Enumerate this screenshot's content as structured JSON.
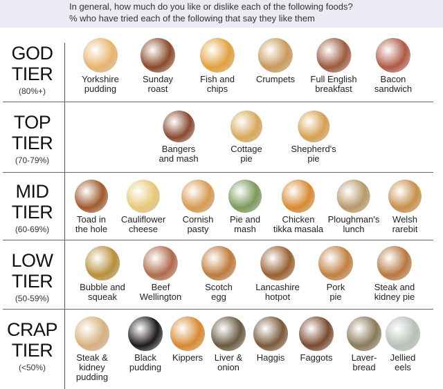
{
  "header": {
    "question": "In general, how much do you like or dislike each of the following foods?",
    "subtitle": "% who have tried each of the following that say they like them",
    "background": "#ecebf3"
  },
  "tiers": [
    {
      "name1": "GOD",
      "name2": "TIER",
      "range": "(80%+)",
      "foods": [
        {
          "label": [
            "Yorkshire",
            "pudding"
          ],
          "color": "#e8b46e",
          "icon": "yorkshire-pudding-image"
        },
        {
          "label": [
            "Sunday",
            "roast"
          ],
          "color": "#8a4a2a",
          "icon": "sunday-roast-image"
        },
        {
          "label": [
            "Fish and",
            "chips"
          ],
          "color": "#e2a23c",
          "icon": "fish-and-chips-image"
        },
        {
          "label": [
            "Crumpets"
          ],
          "color": "#c99a5b",
          "icon": "crumpets-image"
        },
        {
          "label": [
            "Full English",
            "breakfast"
          ],
          "color": "#9c5a3c",
          "icon": "full-english-breakfast-image"
        },
        {
          "label": [
            "Bacon",
            "sandwich"
          ],
          "color": "#b05a44",
          "icon": "bacon-sandwich-image"
        }
      ]
    },
    {
      "name1": "TOP",
      "name2": "TIER",
      "range": "(70-79%)",
      "foods": [
        {
          "label": [
            "Bangers",
            "and mash"
          ],
          "color": "#8a4a30",
          "icon": "bangers-and-mash-image"
        },
        {
          "label": [
            "Cottage",
            "pie"
          ],
          "color": "#d9a85a",
          "icon": "cottage-pie-image"
        },
        {
          "label": [
            "Shepherd's",
            "pie"
          ],
          "color": "#d8a050",
          "icon": "shepherds-pie-image"
        }
      ]
    },
    {
      "name1": "MID",
      "name2": "TIER",
      "range": "(60-69%)",
      "foods": [
        {
          "label": [
            "Toad in",
            "the hole"
          ],
          "color": "#a05a2c",
          "icon": "toad-in-the-hole-image"
        },
        {
          "label": [
            "Cauliflower",
            "cheese"
          ],
          "color": "#e8c878",
          "icon": "cauliflower-cheese-image"
        },
        {
          "label": [
            "Cornish",
            "pasty"
          ],
          "color": "#d89a50",
          "icon": "cornish-pasty-image"
        },
        {
          "label": [
            "Pie and",
            "mash"
          ],
          "color": "#7a9a5a",
          "icon": "pie-and-mash-image"
        },
        {
          "label": [
            "Chicken",
            "tikka masala"
          ],
          "color": "#d88a30",
          "icon": "chicken-tikka-masala-image"
        },
        {
          "label": [
            "Ploughman's",
            "lunch"
          ],
          "color": "#b89a6a",
          "icon": "ploughmans-lunch-image"
        },
        {
          "label": [
            "Welsh",
            "rarebit"
          ],
          "color": "#c8904a",
          "icon": "welsh-rarebit-image"
        }
      ]
    },
    {
      "name1": "LOW",
      "name2": "TIER",
      "range": "(50-59%)",
      "foods": [
        {
          "label": [
            "Bubble and",
            "squeak"
          ],
          "color": "#b8903a",
          "icon": "bubble-and-squeak-image"
        },
        {
          "label": [
            "Beef",
            "Wellington"
          ],
          "color": "#b06a4a",
          "icon": "beef-wellington-image"
        },
        {
          "label": [
            "Scotch",
            "egg"
          ],
          "color": "#c07a3a",
          "icon": "scotch-egg-image"
        },
        {
          "label": [
            "Lancashire",
            "hotpot"
          ],
          "color": "#9a6030",
          "icon": "lancashire-hotpot-image"
        },
        {
          "label": [
            "Pork",
            "pie"
          ],
          "color": "#c08040",
          "icon": "pork-pie-image"
        },
        {
          "label": [
            "Steak and",
            "kidney pie"
          ],
          "color": "#b87840",
          "icon": "steak-and-kidney-pie-image"
        }
      ]
    },
    {
      "name1": "CRAP",
      "name2": "TIER",
      "range": "(<50%)",
      "foods": [
        {
          "label": [
            "Steak &",
            "kidney",
            "pudding"
          ],
          "color": "#d8b080",
          "icon": "steak-and-kidney-pudding-image"
        },
        {
          "label": [
            "Black",
            "pudding"
          ],
          "color": "#1e1a1a",
          "icon": "black-pudding-image"
        },
        {
          "label": [
            "Kippers"
          ],
          "color": "#d88a30",
          "icon": "kippers-image"
        },
        {
          "label": [
            "Liver &",
            "onion"
          ],
          "color": "#6a5a40",
          "icon": "liver-and-onion-image"
        },
        {
          "label": [
            "Haggis"
          ],
          "color": "#7a5a3a",
          "icon": "haggis-image"
        },
        {
          "label": [
            "Faggots"
          ],
          "color": "#7a4a30",
          "icon": "faggots-image"
        },
        {
          "label": [
            "Laver-",
            "bread"
          ],
          "color": "#8a7a5a",
          "icon": "laverbread-image"
        },
        {
          "label": [
            "Jellied",
            "eels"
          ],
          "color": "#b8c0b8",
          "icon": "jellied-eels-image"
        }
      ]
    }
  ]
}
